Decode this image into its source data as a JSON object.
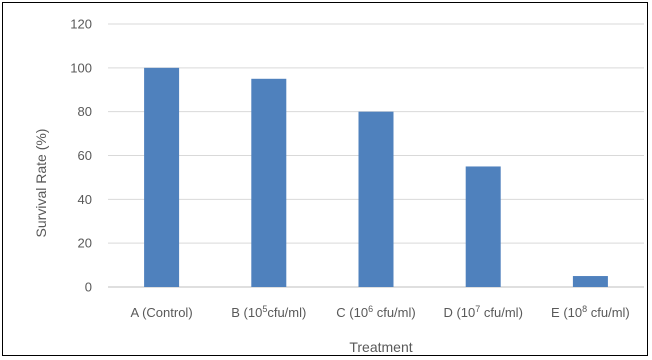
{
  "chart_data": {
    "type": "bar",
    "title": "",
    "xlabel": "Treatment",
    "ylabel": "Survival Rate (%)",
    "ylim": [
      0,
      120
    ],
    "yticks": [
      0,
      20,
      40,
      60,
      80,
      100,
      120
    ],
    "grid": true,
    "legend": "none",
    "bar_color": "#4f81bd",
    "categories": [
      {
        "pre": "A (Control)",
        "sup": "",
        "post": ""
      },
      {
        "pre": "B (10",
        "sup": "5",
        "post": "cfu/ml)"
      },
      {
        "pre": "C (10",
        "sup": "6",
        "post": " cfu/ml)"
      },
      {
        "pre": "D (10",
        "sup": "7",
        "post": " cfu/ml)"
      },
      {
        "pre": "E (10",
        "sup": "8",
        "post": " cfu/ml)"
      }
    ],
    "values": [
      100,
      95,
      80,
      55,
      5
    ]
  }
}
